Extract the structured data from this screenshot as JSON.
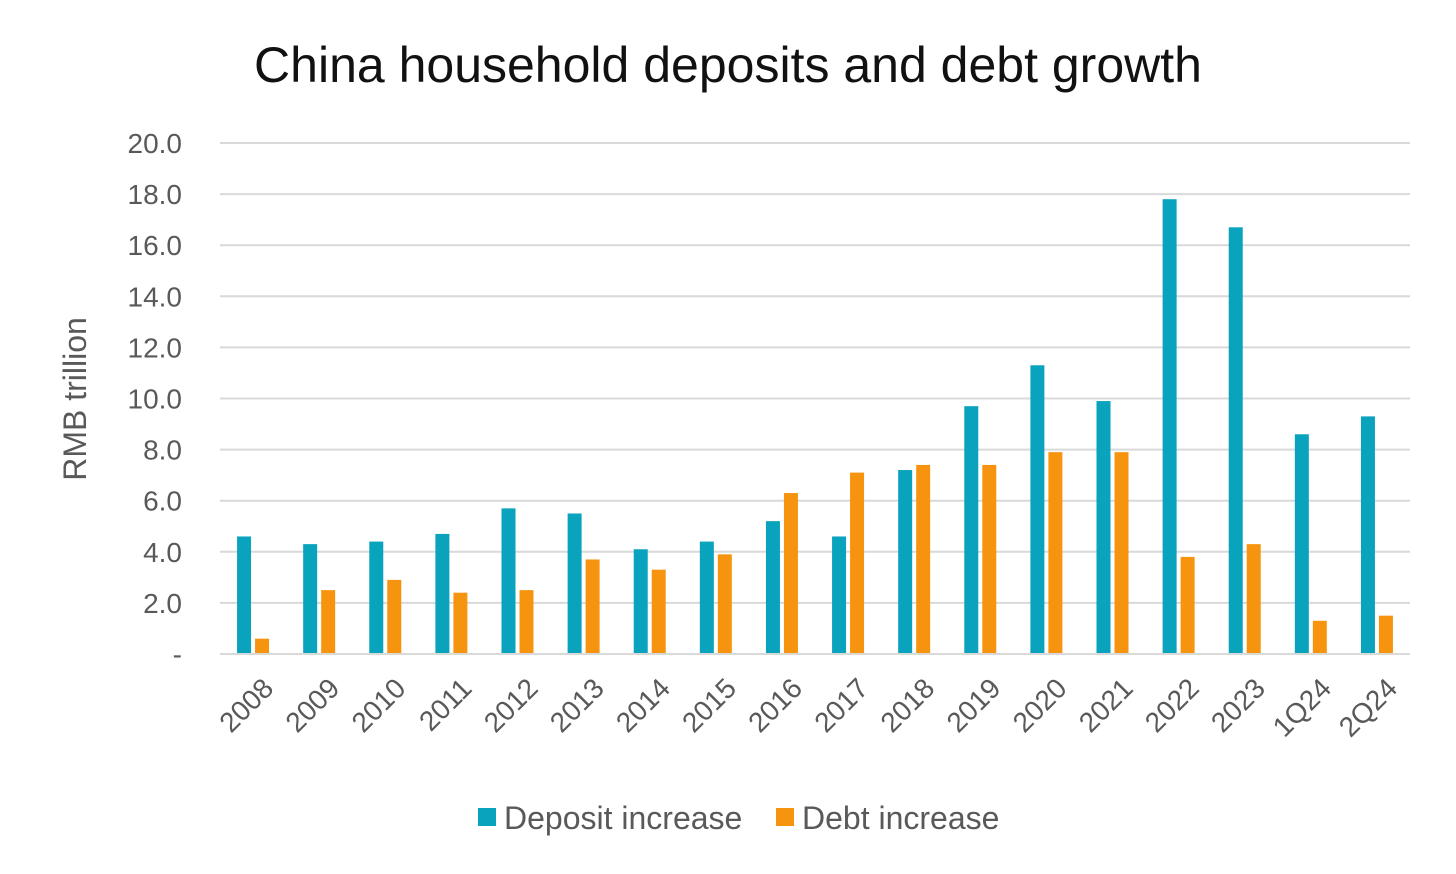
{
  "chart_data": {
    "type": "bar",
    "title": "China household deposits and debt growth",
    "xlabel": "",
    "ylabel": "RMB trillion",
    "ylim": [
      0,
      20
    ],
    "y_ticks": [
      "-",
      "2.0",
      "4.0",
      "6.0",
      "8.0",
      "10.0",
      "12.0",
      "14.0",
      "16.0",
      "18.0",
      "20.0"
    ],
    "categories": [
      "2008",
      "2009",
      "2010",
      "2011",
      "2012",
      "2013",
      "2014",
      "2015",
      "2016",
      "2017",
      "2018",
      "2019",
      "2020",
      "2021",
      "2022",
      "2023",
      "1Q24",
      "2Q24"
    ],
    "series": [
      {
        "name": "Deposit increase",
        "color": "#0AA3BE",
        "values": [
          4.6,
          4.3,
          4.4,
          4.7,
          5.7,
          5.5,
          4.1,
          4.4,
          5.2,
          4.6,
          7.2,
          9.7,
          11.3,
          9.9,
          17.8,
          16.7,
          8.6,
          9.3
        ]
      },
      {
        "name": "Debt increase",
        "color": "#F7940F",
        "values": [
          0.6,
          2.5,
          2.9,
          2.4,
          2.5,
          3.7,
          3.3,
          3.9,
          6.3,
          7.1,
          7.4,
          7.4,
          7.9,
          7.9,
          3.8,
          4.3,
          1.3,
          1.5
        ]
      }
    ],
    "grid": true,
    "legend_position": "bottom"
  }
}
